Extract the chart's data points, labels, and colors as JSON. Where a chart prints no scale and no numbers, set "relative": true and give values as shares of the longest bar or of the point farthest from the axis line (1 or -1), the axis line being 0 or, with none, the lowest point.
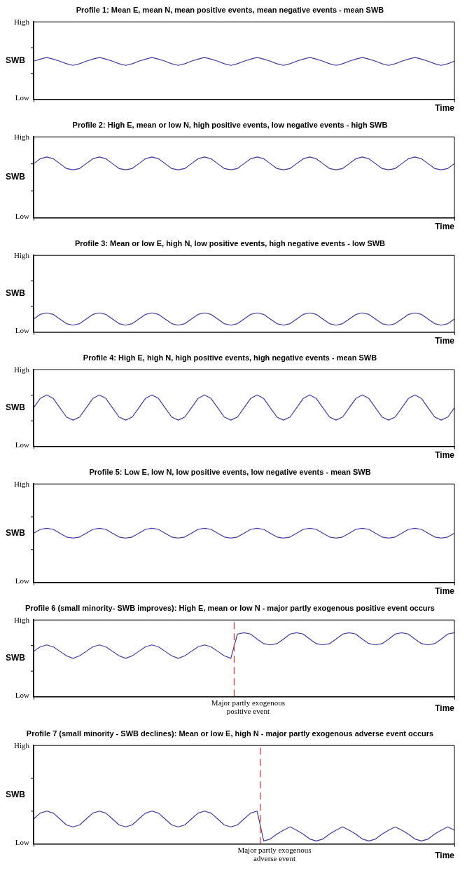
{
  "chart_data": [
    {
      "type": "line",
      "title": "Profile 1: Mean E, mean N, mean positive events, mean negative events - mean SWB",
      "xlabel": "Time",
      "ylabel": "SWB",
      "relative": true,
      "annotations": [
        "High",
        "Low"
      ],
      "categories": [
        null,
        null,
        null,
        null,
        null,
        null,
        null,
        null,
        null,
        null,
        null,
        null,
        null,
        null,
        null,
        null,
        null,
        null,
        null,
        null,
        null,
        null,
        null,
        null,
        null,
        null,
        null,
        null,
        null,
        null,
        null,
        null,
        null,
        null,
        null,
        null,
        null,
        null,
        null,
        null,
        null,
        null,
        null,
        null,
        null,
        null,
        null,
        null,
        null,
        null,
        null,
        null,
        null,
        null,
        null,
        null,
        null,
        null,
        null,
        null,
        null,
        null,
        null,
        null,
        null
      ],
      "series": [
        {
          "color": "#3f3a9e",
          "values": [
            0.91,
            0.96,
            1,
            0.96,
            0.91,
            0.85,
            0.81,
            0.85,
            0.91,
            0.96,
            1,
            0.96,
            0.91,
            0.85,
            0.81,
            0.85,
            0.91,
            0.96,
            1,
            0.96,
            0.91,
            0.85,
            0.81,
            0.85,
            0.91,
            0.96,
            1,
            0.96,
            0.91,
            0.85,
            0.81,
            0.85,
            0.91,
            0.96,
            1,
            0.96,
            0.91,
            0.85,
            0.81,
            0.85,
            0.91,
            0.96,
            1,
            0.96,
            0.91,
            0.85,
            0.81,
            0.85,
            0.91,
            0.96,
            1,
            0.96,
            0.91,
            0.85,
            0.81,
            0.85,
            0.91,
            0.96,
            1,
            0.96,
            0.91,
            0.85,
            0.81,
            0.85,
            0.91
          ]
        }
      ]
    },
    {
      "type": "line",
      "title": "Profile 2: High E, mean or low N, high positive events, low negative events - high SWB",
      "xlabel": "Time",
      "ylabel": "SWB",
      "relative": true,
      "annotations": [
        "High",
        "Low"
      ],
      "categories": [
        null,
        null,
        null,
        null,
        null,
        null,
        null,
        null,
        null,
        null,
        null,
        null,
        null,
        null,
        null,
        null,
        null,
        null,
        null,
        null,
        null,
        null,
        null,
        null,
        null,
        null,
        null,
        null,
        null,
        null,
        null,
        null,
        null,
        null,
        null,
        null,
        null,
        null,
        null,
        null,
        null,
        null,
        null,
        null,
        null,
        null,
        null,
        null,
        null,
        null,
        null,
        null,
        null,
        null,
        null,
        null,
        null,
        null,
        null,
        null,
        null,
        null,
        null,
        null,
        null
      ],
      "series": [
        {
          "color": "#3f3a9e",
          "values": [
            0.89,
            0.97,
            1,
            0.97,
            0.89,
            0.81,
            0.79,
            0.81,
            0.89,
            0.97,
            1,
            0.97,
            0.89,
            0.81,
            0.79,
            0.81,
            0.89,
            0.97,
            1,
            0.97,
            0.89,
            0.81,
            0.79,
            0.81,
            0.89,
            0.97,
            1,
            0.97,
            0.89,
            0.81,
            0.79,
            0.81,
            0.89,
            0.97,
            1,
            0.97,
            0.89,
            0.81,
            0.79,
            0.81,
            0.89,
            0.97,
            1,
            0.97,
            0.89,
            0.81,
            0.79,
            0.81,
            0.89,
            0.97,
            1,
            0.97,
            0.89,
            0.81,
            0.79,
            0.81,
            0.89,
            0.97,
            1,
            0.97,
            0.89,
            0.81,
            0.79,
            0.81,
            0.89
          ]
        }
      ]
    },
    {
      "type": "line",
      "title": "Profile 3: Mean or low E, high N, low positive events, high negative events - low SWB",
      "xlabel": "Time",
      "ylabel": "SWB",
      "relative": true,
      "annotations": [
        "High",
        "Low"
      ],
      "categories": [
        null,
        null,
        null,
        null,
        null,
        null,
        null,
        null,
        null,
        null,
        null,
        null,
        null,
        null,
        null,
        null,
        null,
        null,
        null,
        null,
        null,
        null,
        null,
        null,
        null,
        null,
        null,
        null,
        null,
        null,
        null,
        null,
        null,
        null,
        null,
        null,
        null,
        null,
        null,
        null,
        null,
        null,
        null,
        null,
        null,
        null,
        null,
        null,
        null,
        null,
        null,
        null,
        null,
        null,
        null,
        null,
        null,
        null,
        null,
        null,
        null,
        null,
        null,
        null,
        null
      ],
      "series": [
        {
          "color": "#3f3a9e",
          "values": [
            0.68,
            0.92,
            1,
            0.92,
            0.68,
            0.44,
            0.36,
            0.44,
            0.68,
            0.92,
            1,
            0.92,
            0.68,
            0.44,
            0.36,
            0.44,
            0.68,
            0.92,
            1,
            0.92,
            0.68,
            0.44,
            0.36,
            0.44,
            0.68,
            0.92,
            1,
            0.92,
            0.68,
            0.44,
            0.36,
            0.44,
            0.68,
            0.92,
            1,
            0.92,
            0.68,
            0.44,
            0.36,
            0.44,
            0.68,
            0.92,
            1,
            0.92,
            0.68,
            0.44,
            0.36,
            0.44,
            0.68,
            0.92,
            1,
            0.92,
            0.68,
            0.44,
            0.36,
            0.44,
            0.68,
            0.92,
            1,
            0.92,
            0.68,
            0.44,
            0.36,
            0.44,
            0.68
          ]
        }
      ]
    },
    {
      "type": "line",
      "title": "Profile 4: High E, high N, high positive events, high negative events - mean SWB",
      "xlabel": "Time",
      "ylabel": "SWB",
      "relative": true,
      "annotations": [
        "High",
        "Low"
      ],
      "categories": [
        null,
        null,
        null,
        null,
        null,
        null,
        null,
        null,
        null,
        null,
        null,
        null,
        null,
        null,
        null,
        null,
        null,
        null,
        null,
        null,
        null,
        null,
        null,
        null,
        null,
        null,
        null,
        null,
        null,
        null,
        null,
        null,
        null,
        null,
        null,
        null,
        null,
        null,
        null,
        null,
        null,
        null,
        null,
        null,
        null,
        null,
        null,
        null,
        null,
        null,
        null,
        null,
        null,
        null,
        null,
        null,
        null,
        null,
        null,
        null,
        null,
        null,
        null,
        null,
        null
      ],
      "series": [
        {
          "color": "#3f3a9e",
          "values": [
            0.75,
            0.93,
            1,
            0.93,
            0.75,
            0.57,
            0.51,
            0.57,
            0.75,
            0.93,
            1,
            0.93,
            0.75,
            0.57,
            0.51,
            0.57,
            0.75,
            0.93,
            1,
            0.93,
            0.75,
            0.57,
            0.51,
            0.57,
            0.75,
            0.93,
            1,
            0.93,
            0.75,
            0.57,
            0.51,
            0.57,
            0.75,
            0.93,
            1,
            0.93,
            0.75,
            0.57,
            0.51,
            0.57,
            0.75,
            0.93,
            1,
            0.93,
            0.75,
            0.57,
            0.51,
            0.57,
            0.75,
            0.93,
            1,
            0.93,
            0.75,
            0.57,
            0.51,
            0.57,
            0.75,
            0.93,
            1,
            0.93,
            0.75,
            0.57,
            0.51,
            0.57,
            0.75
          ]
        }
      ]
    },
    {
      "type": "line",
      "title": "Profile 5: Low E, low N, low positive events, low negative events - mean SWB",
      "xlabel": "Time",
      "ylabel": "SWB",
      "relative": true,
      "annotations": [
        "High",
        "Low"
      ],
      "categories": [
        null,
        null,
        null,
        null,
        null,
        null,
        null,
        null,
        null,
        null,
        null,
        null,
        null,
        null,
        null,
        null,
        null,
        null,
        null,
        null,
        null,
        null,
        null,
        null,
        null,
        null,
        null,
        null,
        null,
        null,
        null,
        null,
        null,
        null,
        null,
        null,
        null,
        null,
        null,
        null,
        null,
        null,
        null,
        null,
        null,
        null,
        null,
        null,
        null,
        null,
        null,
        null,
        null,
        null,
        null,
        null,
        null,
        null,
        null,
        null,
        null,
        null,
        null,
        null,
        null
      ],
      "series": [
        {
          "color": "#3f3a9e",
          "values": [
            0.91,
            0.98,
            1,
            0.98,
            0.91,
            0.84,
            0.82,
            0.84,
            0.91,
            0.98,
            1,
            0.98,
            0.91,
            0.84,
            0.82,
            0.84,
            0.91,
            0.98,
            1,
            0.98,
            0.91,
            0.84,
            0.82,
            0.84,
            0.91,
            0.98,
            1,
            0.98,
            0.91,
            0.84,
            0.82,
            0.84,
            0.91,
            0.98,
            1,
            0.98,
            0.91,
            0.84,
            0.82,
            0.84,
            0.91,
            0.98,
            1,
            0.98,
            0.91,
            0.84,
            0.82,
            0.84,
            0.91,
            0.98,
            1,
            0.98,
            0.91,
            0.84,
            0.82,
            0.84,
            0.91,
            0.98,
            1,
            0.98,
            0.91,
            0.84,
            0.82,
            0.84,
            0.91
          ]
        }
      ]
    },
    {
      "type": "line",
      "title": "Profile 6 (small minority- SWB improves): High E, mean or low N - major partly exogenous positive event occurs",
      "xlabel": "Time",
      "ylabel": "SWB",
      "relative": true,
      "annotations": [
        "High",
        "Low",
        "Major partly exogenous positive event"
      ],
      "categories": [
        null,
        null,
        null,
        null,
        null,
        null,
        null,
        null,
        null,
        null,
        null,
        null,
        null,
        null,
        null,
        null,
        null,
        null,
        null,
        null,
        null,
        null,
        null,
        null,
        null,
        null,
        null,
        null,
        null,
        null,
        null,
        null,
        null,
        null,
        null,
        null,
        null,
        null,
        null,
        null,
        null,
        null,
        null,
        null,
        null,
        null,
        null,
        null,
        null,
        null,
        null,
        null,
        null,
        null,
        null,
        null,
        null,
        null,
        null,
        null,
        null,
        null,
        null,
        null,
        null
      ],
      "series": [
        {
          "color": "#3f3a9e",
          "values": [
            0.71,
            0.78,
            0.81,
            0.78,
            0.71,
            0.64,
            0.6,
            0.64,
            0.71,
            0.78,
            0.81,
            0.78,
            0.71,
            0.64,
            0.6,
            0.64,
            0.71,
            0.78,
            0.81,
            0.78,
            0.71,
            0.64,
            0.6,
            0.64,
            0.71,
            0.78,
            0.81,
            0.78,
            0.71,
            0.64,
            0.6,
            0.98,
            1,
            0.98,
            0.9,
            0.83,
            0.81,
            0.83,
            0.9,
            0.98,
            1,
            0.98,
            0.9,
            0.83,
            0.81,
            0.83,
            0.9,
            0.98,
            1,
            0.98,
            0.9,
            0.83,
            0.81,
            0.83,
            0.9,
            0.98,
            1,
            0.98,
            0.9,
            0.83,
            0.81,
            0.83,
            0.9,
            0.98,
            1
          ]
        }
      ]
    },
    {
      "type": "line",
      "title": "Profile 7 (small minority - SWB declines): Mean or low E, high N - major partly exogenous adverse event occurs",
      "xlabel": "Time",
      "ylabel": "SWB",
      "relative": true,
      "annotations": [
        "High",
        "Low",
        "Major partly exogenous adverse event"
      ],
      "categories": [
        null,
        null,
        null,
        null,
        null,
        null,
        null,
        null,
        null,
        null,
        null,
        null,
        null,
        null,
        null,
        null,
        null,
        null,
        null,
        null,
        null,
        null,
        null,
        null,
        null,
        null,
        null,
        null,
        null,
        null,
        null,
        null,
        null,
        null,
        null,
        null,
        null,
        null,
        null,
        null,
        null,
        null,
        null,
        null,
        null,
        null,
        null,
        null,
        null,
        null,
        null,
        null,
        null,
        null,
        null,
        null,
        null,
        null,
        null,
        null,
        null,
        null,
        null,
        null,
        null
      ],
      "series": [
        {
          "color": "#3f3a9e",
          "values": [
            0.76,
            0.94,
            1,
            0.94,
            0.76,
            0.58,
            0.52,
            0.58,
            0.76,
            0.94,
            1,
            0.94,
            0.76,
            0.58,
            0.52,
            0.58,
            0.76,
            0.94,
            1,
            0.94,
            0.76,
            0.58,
            0.52,
            0.58,
            0.76,
            0.94,
            1,
            0.94,
            0.76,
            0.58,
            0.52,
            0.58,
            0.76,
            0.94,
            1,
            0.09,
            0.15,
            0.3,
            0.42,
            0.52,
            0.42,
            0.3,
            0.15,
            0.09,
            0.15,
            0.3,
            0.42,
            0.52,
            0.42,
            0.3,
            0.15,
            0.09,
            0.15,
            0.3,
            0.42,
            0.52,
            0.42,
            0.3,
            0.15,
            0.09,
            0.15,
            0.3,
            0.42,
            0.52,
            0.42
          ]
        }
      ]
    }
  ]
}
